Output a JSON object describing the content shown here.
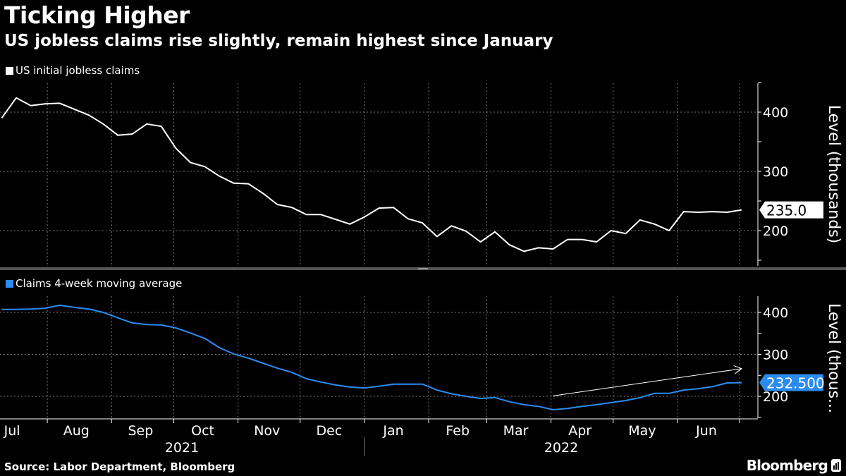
{
  "header": {
    "title": "Ticking Higher",
    "subtitle": "US jobless claims rise slightly, remain highest since January"
  },
  "footer": {
    "source": "Source: Labor Department, Bloomberg",
    "logo": "Bloomberg",
    "logo_icon": "bloomberg-terminal-icon"
  },
  "colors": {
    "background": "#000000",
    "initial_claims": "#ffffff",
    "moving_average": "#2a8cf0",
    "grid": "#7a7a7a"
  },
  "chart_data": [
    {
      "type": "line",
      "legend": "US initial jobless claims",
      "legend_position": "top-left",
      "ylabel": "Level (thousands)",
      "yticks": [
        200,
        300,
        400
      ],
      "ylim": [
        140,
        450
      ],
      "grid": true,
      "last_value_label": "235.0",
      "x": [
        "2021-07-10",
        "2021-07-17",
        "2021-07-24",
        "2021-07-31",
        "2021-08-07",
        "2021-08-14",
        "2021-08-21",
        "2021-08-28",
        "2021-09-04",
        "2021-09-11",
        "2021-09-18",
        "2021-09-25",
        "2021-10-02",
        "2021-10-09",
        "2021-10-16",
        "2021-10-23",
        "2021-10-30",
        "2021-11-06",
        "2021-11-13",
        "2021-11-20",
        "2021-11-27",
        "2021-12-04",
        "2021-12-11",
        "2021-12-18",
        "2021-12-25",
        "2022-01-01",
        "2022-01-08",
        "2022-01-15",
        "2022-01-22",
        "2022-01-29",
        "2022-02-05",
        "2022-02-12",
        "2022-02-19",
        "2022-02-26",
        "2022-03-05",
        "2022-03-12",
        "2022-03-19",
        "2022-03-26",
        "2022-04-02",
        "2022-04-09",
        "2022-04-16",
        "2022-04-23",
        "2022-04-30",
        "2022-05-07",
        "2022-05-14",
        "2022-05-21",
        "2022-05-28",
        "2022-06-04",
        "2022-06-11",
        "2022-06-18",
        "2022-06-25",
        "2022-07-02"
      ],
      "values": [
        390,
        424,
        411,
        414,
        415,
        405,
        395,
        380,
        361,
        363,
        380,
        376,
        339,
        315,
        308,
        292,
        280,
        279,
        263,
        244,
        239,
        227,
        227,
        219,
        211,
        223,
        238,
        239,
        220,
        213,
        190,
        208,
        199,
        181,
        198,
        176,
        165,
        171,
        169,
        185,
        185,
        181,
        200,
        195,
        218,
        211,
        200,
        232,
        231,
        232,
        231,
        235
      ]
    },
    {
      "type": "line",
      "legend": "Claims 4-week moving average",
      "legend_position": "top-left",
      "ylabel": "Level (thous...",
      "yticks": [
        200,
        300,
        400
      ],
      "ylim": [
        150,
        440
      ],
      "grid": true,
      "last_value_label": "232.500",
      "x": [
        "2021-07-10",
        "2021-07-17",
        "2021-07-24",
        "2021-07-31",
        "2021-08-07",
        "2021-08-14",
        "2021-08-21",
        "2021-08-28",
        "2021-09-04",
        "2021-09-11",
        "2021-09-18",
        "2021-09-25",
        "2021-10-02",
        "2021-10-09",
        "2021-10-16",
        "2021-10-23",
        "2021-10-30",
        "2021-11-06",
        "2021-11-13",
        "2021-11-20",
        "2021-11-27",
        "2021-12-04",
        "2021-12-11",
        "2021-12-18",
        "2021-12-25",
        "2022-01-01",
        "2022-01-08",
        "2022-01-15",
        "2022-01-22",
        "2022-01-29",
        "2022-02-05",
        "2022-02-12",
        "2022-02-19",
        "2022-02-26",
        "2022-03-05",
        "2022-03-12",
        "2022-03-19",
        "2022-03-26",
        "2022-04-02",
        "2022-04-09",
        "2022-04-16",
        "2022-04-23",
        "2022-04-30",
        "2022-05-07",
        "2022-05-14",
        "2022-05-21",
        "2022-05-28",
        "2022-06-04",
        "2022-06-11",
        "2022-06-18",
        "2022-06-25",
        "2022-07-02"
      ],
      "values": [
        407,
        407,
        408,
        410,
        417,
        412,
        408,
        400,
        387,
        375,
        371,
        370,
        363,
        351,
        338,
        316,
        301,
        291,
        279,
        267,
        257,
        242,
        234,
        227,
        222,
        220,
        224,
        229,
        229,
        229,
        215,
        206,
        200,
        195,
        197,
        187,
        180,
        176,
        168,
        171,
        176,
        180,
        185,
        190,
        197,
        207,
        207,
        215,
        218,
        223,
        232,
        232.5
      ],
      "annotations": [
        {
          "type": "arrow",
          "from": [
            "2022-04-02",
            201
          ],
          "to": [
            "2022-07-02",
            266
          ]
        }
      ]
    }
  ],
  "x_axis": {
    "months": [
      "Jul",
      "Aug",
      "Sep",
      "Oct",
      "Nov",
      "Dec",
      "Jan",
      "Feb",
      "Mar",
      "Apr",
      "May",
      "Jun"
    ],
    "month_dates": [
      "2021-07",
      "2021-08",
      "2021-09",
      "2021-10",
      "2021-11",
      "2021-12",
      "2022-01",
      "2022-02",
      "2022-03",
      "2022-04",
      "2022-05",
      "2022-06"
    ],
    "years": [
      "2021",
      "2022"
    ]
  }
}
